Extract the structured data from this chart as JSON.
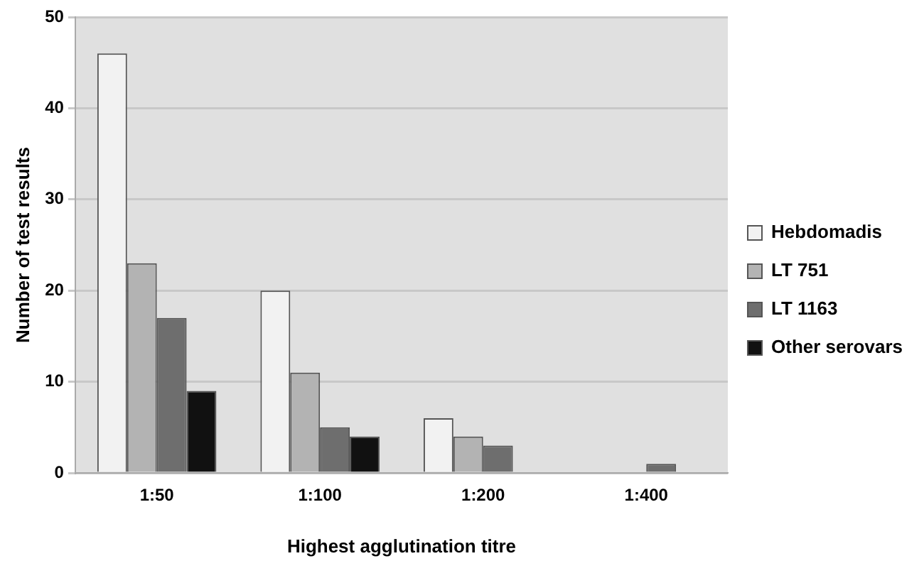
{
  "chart_data": {
    "type": "bar",
    "xlabel": "Highest agglutination titre",
    "ylabel": "Number of test results",
    "categories": [
      "1:50",
      "1:100",
      "1:200",
      "1:400"
    ],
    "series": [
      {
        "name": "Hebdomadis",
        "color": "#f2f2f2",
        "values": [
          46,
          20,
          6,
          0
        ]
      },
      {
        "name": "LT 751",
        "color": "#b3b3b3",
        "values": [
          23,
          11,
          4,
          0
        ]
      },
      {
        "name": "LT 1163",
        "color": "#6e6e6e",
        "values": [
          17,
          5,
          3,
          1
        ]
      },
      {
        "name": "Other serovars",
        "color": "#111111",
        "values": [
          9,
          4,
          0,
          0
        ]
      }
    ],
    "ylim": [
      0,
      50
    ],
    "yticks": [
      0,
      10,
      20,
      30,
      40,
      50
    ],
    "grid": "y",
    "legend": "right"
  }
}
